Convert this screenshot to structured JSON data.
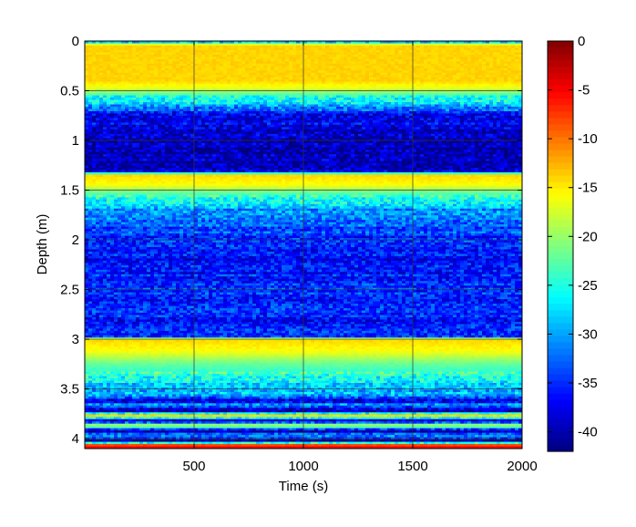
{
  "chart_data": {
    "type": "heatmap",
    "title": "",
    "xlabel": "Time (s)",
    "ylabel": "Depth (m)",
    "xlim": [
      0,
      2000
    ],
    "ylim": [
      0,
      4.1
    ],
    "y_reversed": true,
    "x_ticks": [
      500,
      1000,
      1500,
      2000
    ],
    "y_ticks": [
      0,
      0.5,
      1,
      1.5,
      2,
      2.5,
      3,
      3.5,
      4
    ],
    "grid": true,
    "colormap": "jet",
    "color_range": [
      -42,
      0
    ],
    "colorbar_ticks": [
      0,
      -5,
      -10,
      -15,
      -20,
      -25,
      -30,
      -35,
      -40
    ],
    "depth_profile": [
      {
        "depth": 0.0,
        "value": -35
      },
      {
        "depth": 0.04,
        "value": -14
      },
      {
        "depth": 0.4,
        "value": -14
      },
      {
        "depth": 0.48,
        "value": -17
      },
      {
        "depth": 0.55,
        "value": -24
      },
      {
        "depth": 0.65,
        "value": -30
      },
      {
        "depth": 0.75,
        "value": -37
      },
      {
        "depth": 1.0,
        "value": -40
      },
      {
        "depth": 1.32,
        "value": -39
      },
      {
        "depth": 1.34,
        "value": -14
      },
      {
        "depth": 1.45,
        "value": -16
      },
      {
        "depth": 1.55,
        "value": -24
      },
      {
        "depth": 1.7,
        "value": -30
      },
      {
        "depth": 1.9,
        "value": -34
      },
      {
        "depth": 2.2,
        "value": -37
      },
      {
        "depth": 2.5,
        "value": -35
      },
      {
        "depth": 2.8,
        "value": -36
      },
      {
        "depth": 2.98,
        "value": -35
      },
      {
        "depth": 3.0,
        "value": -14
      },
      {
        "depth": 3.12,
        "value": -16
      },
      {
        "depth": 3.25,
        "value": -22
      },
      {
        "depth": 3.45,
        "value": -28
      },
      {
        "depth": 3.58,
        "value": -30
      },
      {
        "depth": 3.62,
        "value": -41
      },
      {
        "depth": 3.66,
        "value": -28
      },
      {
        "depth": 3.72,
        "value": -41
      },
      {
        "depth": 3.77,
        "value": -14
      },
      {
        "depth": 3.82,
        "value": -41
      },
      {
        "depth": 3.87,
        "value": -16
      },
      {
        "depth": 3.92,
        "value": -41
      },
      {
        "depth": 3.97,
        "value": -30
      },
      {
        "depth": 4.02,
        "value": -41
      },
      {
        "depth": 4.07,
        "value": -5
      },
      {
        "depth": 4.1,
        "value": -5
      }
    ]
  }
}
